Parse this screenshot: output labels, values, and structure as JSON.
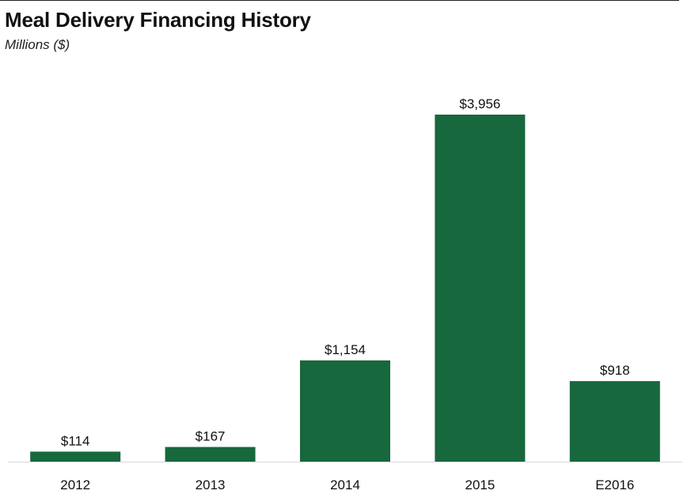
{
  "colors": {
    "bar": "#17683d",
    "axis": "#d9d9d9"
  },
  "chart_data": {
    "type": "bar",
    "title": "Meal Delivery Financing History",
    "subtitle": "Millions ($)",
    "categories": [
      "2012",
      "2013",
      "2014",
      "2015",
      "E2016"
    ],
    "values": [
      114,
      167,
      1154,
      3956,
      918
    ],
    "data_labels": [
      "$114",
      "$167",
      "$1,154",
      "$3,956",
      "$918"
    ],
    "xlabel": "",
    "ylabel": "",
    "ylim": [
      0,
      4000
    ],
    "grid": false,
    "legend": "none"
  }
}
